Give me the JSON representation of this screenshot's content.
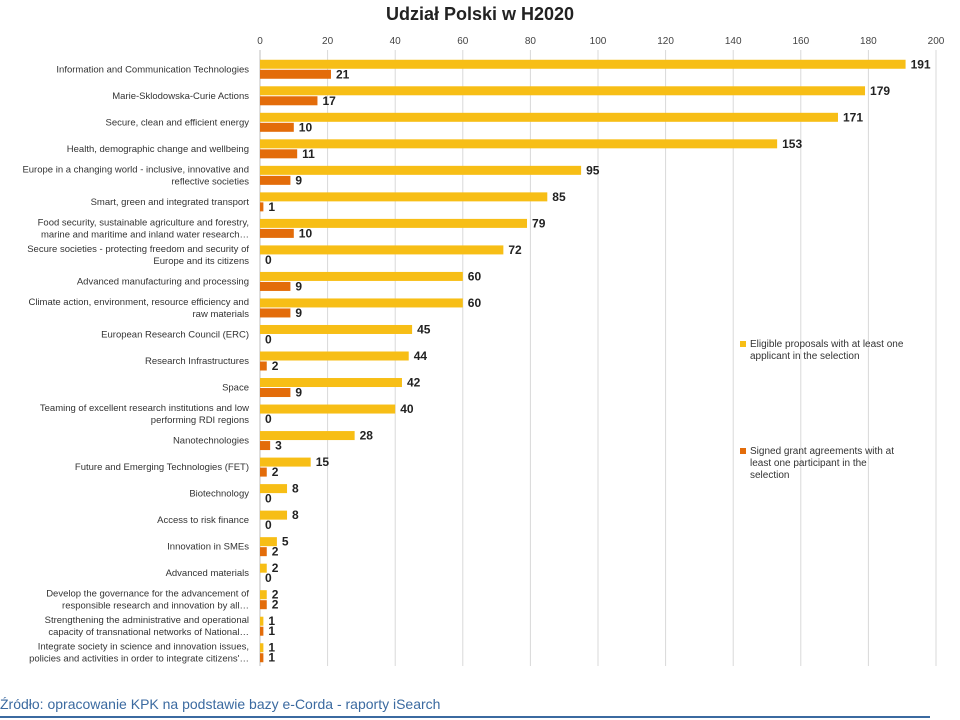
{
  "chart_data": {
    "type": "bar",
    "orientation": "horizontal",
    "title": "Udział Polski w H2020",
    "xlim": [
      0,
      200
    ],
    "xticks": [
      0,
      20,
      40,
      60,
      80,
      100,
      120,
      140,
      160,
      180,
      200
    ],
    "grid": true,
    "legend_position": "right",
    "categories": [
      "Information and Communication Technologies",
      "Marie-Sklodowska-Curie Actions",
      "Secure, clean and efficient energy",
      "Health, demographic change and wellbeing",
      "Europe in a changing world - inclusive, innovative and reflective societies",
      "Smart, green and integrated transport",
      "Food security, sustainable agriculture and forestry, marine and maritime and inland water research…",
      "Secure societies - protecting freedom and security of Europe and its citizens",
      "Advanced manufacturing and processing",
      "Climate action, environment, resource efficiency and raw materials",
      "European Research Council (ERC)",
      "Research Infrastructures",
      "Space",
      "Teaming of excellent research institutions and low performing RDI regions",
      "Nanotechnologies",
      "Future and Emerging Technologies (FET)",
      "Biotechnology",
      "Access to risk finance",
      "Innovation in SMEs",
      "Advanced materials",
      "Develop the governance for the advancement of responsible research and innovation by all…",
      "Strengthening the administrative and operational capacity of transnational networks of National…",
      "Integrate society in science and innovation issues, policies and activities in order to integrate citizens'…"
    ],
    "category_lines": [
      [
        "Information and Communication  Technologies"
      ],
      [
        "Marie-Sklodowska-Curie Actions"
      ],
      [
        "Secure, clean and efficient energy"
      ],
      [
        "Health, demographic change and wellbeing"
      ],
      [
        "Europe in a changing world - inclusive, innovative and",
        "reflective societies"
      ],
      [
        "Smart, green and integrated transport"
      ],
      [
        "Food security, sustainable agriculture and forestry,",
        "marine and maritime and inland water research…"
      ],
      [
        "Secure societies - protecting freedom and security of",
        "Europe and its citizens"
      ],
      [
        "Advanced manufacturing and processing"
      ],
      [
        "Climate action, environment, resource efficiency and",
        "raw materials"
      ],
      [
        "European Research Council (ERC)"
      ],
      [
        "Research Infrastructures"
      ],
      [
        "Space"
      ],
      [
        "Teaming of excellent research institutions and low",
        "performing RDI regions"
      ],
      [
        "Nanotechnologies"
      ],
      [
        "Future and Emerging Technologies (FET)"
      ],
      [
        "Biotechnology"
      ],
      [
        "Access to risk finance"
      ],
      [
        "Innovation in SMEs"
      ],
      [
        "Advanced materials"
      ],
      [
        "Develop the governance for the advancement of",
        "responsible research and innovation by all…"
      ],
      [
        "Strengthening the administrative and operational",
        "capacity of transnational networks of National…"
      ],
      [
        "Integrate society in science and innovation issues,",
        "policies and activities in order to integrate citizens'…"
      ]
    ],
    "series": [
      {
        "name": "Eligible proposals with at least one applicant in the selection",
        "legend_lines": [
          "Eligible proposals with at least one",
          "applicant in the selection"
        ],
        "color": "#F7BE16",
        "values": [
          191,
          179,
          171,
          153,
          95,
          85,
          79,
          72,
          60,
          60,
          45,
          44,
          42,
          40,
          28,
          15,
          8,
          8,
          5,
          2,
          2,
          1,
          1
        ]
      },
      {
        "name": "Signed grant agreements with at least one participant in the selection",
        "legend_lines": [
          "Signed grant agreements with at",
          "least one participant in the",
          "selection"
        ],
        "color": "#E36C0A",
        "values": [
          21,
          17,
          10,
          11,
          9,
          1,
          10,
          0,
          9,
          9,
          0,
          2,
          9,
          0,
          3,
          2,
          0,
          0,
          2,
          0,
          2,
          1,
          1
        ]
      }
    ]
  },
  "source_note": "Źródło: opracowanie KPK na podstawie  bazy e-Corda - raporty iSearch"
}
